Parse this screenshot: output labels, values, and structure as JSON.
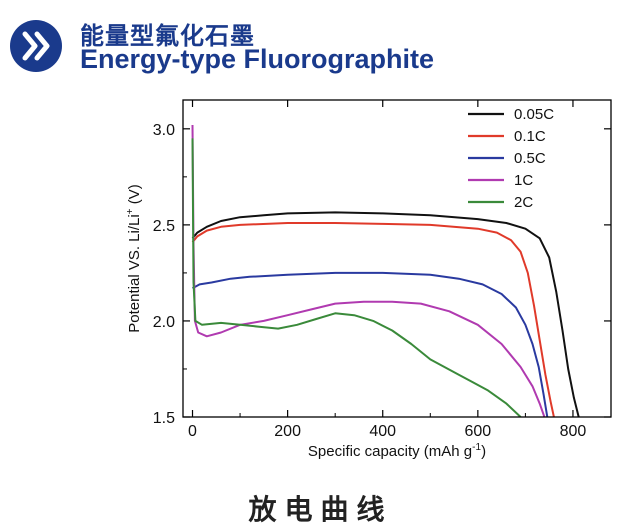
{
  "header": {
    "title_cn": "能量型氟化石墨",
    "title_en": "Energy-type Fluorographite",
    "icon": "double-chevron-right-icon",
    "accent_color": "#1a3a8c"
  },
  "caption": "放电曲线",
  "chart_data": {
    "type": "line",
    "title": "",
    "xlabel": "Specific capacity (mAh g",
    "xlabel_sup": "-1",
    "xlabel_end": ")",
    "ylabel": "Potential VS. Li/Li",
    "ylabel_sup": "+",
    "ylabel_end": " (V)",
    "xlim": [
      -20,
      880
    ],
    "ylim": [
      1.5,
      3.15
    ],
    "xticks": [
      "0",
      "200",
      "400",
      "600",
      "800"
    ],
    "xtick_values": [
      0,
      200,
      400,
      600,
      800
    ],
    "yticks": [
      "1.5",
      "2.0",
      "2.5",
      "3.0"
    ],
    "ytick_values": [
      1.5,
      2.0,
      2.5,
      3.0
    ],
    "grid": false,
    "legend_position": "top-right",
    "series": [
      {
        "name": "0.05C",
        "color": "#111111",
        "points": [
          [
            0,
            2.43
          ],
          [
            10,
            2.46
          ],
          [
            30,
            2.49
          ],
          [
            60,
            2.52
          ],
          [
            100,
            2.54
          ],
          [
            150,
            2.55
          ],
          [
            200,
            2.56
          ],
          [
            300,
            2.565
          ],
          [
            400,
            2.56
          ],
          [
            500,
            2.55
          ],
          [
            600,
            2.53
          ],
          [
            660,
            2.51
          ],
          [
            700,
            2.48
          ],
          [
            730,
            2.43
          ],
          [
            750,
            2.33
          ],
          [
            765,
            2.15
          ],
          [
            778,
            1.95
          ],
          [
            790,
            1.75
          ],
          [
            802,
            1.6
          ],
          [
            812,
            1.5
          ]
        ]
      },
      {
        "name": "0.1C",
        "color": "#e03a2a",
        "points": [
          [
            0,
            2.41
          ],
          [
            10,
            2.44
          ],
          [
            30,
            2.47
          ],
          [
            60,
            2.49
          ],
          [
            100,
            2.5
          ],
          [
            200,
            2.51
          ],
          [
            300,
            2.51
          ],
          [
            400,
            2.505
          ],
          [
            500,
            2.5
          ],
          [
            600,
            2.48
          ],
          [
            640,
            2.46
          ],
          [
            670,
            2.42
          ],
          [
            690,
            2.36
          ],
          [
            705,
            2.25
          ],
          [
            718,
            2.08
          ],
          [
            730,
            1.9
          ],
          [
            742,
            1.72
          ],
          [
            753,
            1.58
          ],
          [
            760,
            1.5
          ]
        ]
      },
      {
        "name": "0.5C",
        "color": "#2a3aa0",
        "points": [
          [
            0,
            2.17
          ],
          [
            15,
            2.19
          ],
          [
            40,
            2.2
          ],
          [
            80,
            2.22
          ],
          [
            120,
            2.23
          ],
          [
            200,
            2.24
          ],
          [
            300,
            2.25
          ],
          [
            400,
            2.25
          ],
          [
            500,
            2.24
          ],
          [
            560,
            2.22
          ],
          [
            610,
            2.19
          ],
          [
            650,
            2.14
          ],
          [
            680,
            2.07
          ],
          [
            700,
            1.98
          ],
          [
            715,
            1.88
          ],
          [
            728,
            1.76
          ],
          [
            738,
            1.62
          ],
          [
            746,
            1.5
          ]
        ]
      },
      {
        "name": "1C",
        "color": "#b03ab0",
        "points": [
          [
            0,
            3.02
          ],
          [
            2,
            2.4
          ],
          [
            5,
            2.0
          ],
          [
            12,
            1.94
          ],
          [
            30,
            1.92
          ],
          [
            60,
            1.94
          ],
          [
            100,
            1.98
          ],
          [
            150,
            2.0
          ],
          [
            200,
            2.03
          ],
          [
            250,
            2.06
          ],
          [
            300,
            2.09
          ],
          [
            360,
            2.1
          ],
          [
            420,
            2.1
          ],
          [
            480,
            2.09
          ],
          [
            540,
            2.05
          ],
          [
            600,
            1.98
          ],
          [
            650,
            1.88
          ],
          [
            690,
            1.76
          ],
          [
            715,
            1.66
          ],
          [
            730,
            1.57
          ],
          [
            740,
            1.5
          ]
        ]
      },
      {
        "name": "2C",
        "color": "#3a8a3a",
        "points": [
          [
            0,
            2.95
          ],
          [
            2,
            2.2
          ],
          [
            6,
            2.0
          ],
          [
            20,
            1.98
          ],
          [
            60,
            1.99
          ],
          [
            100,
            1.98
          ],
          [
            140,
            1.97
          ],
          [
            180,
            1.96
          ],
          [
            220,
            1.98
          ],
          [
            260,
            2.01
          ],
          [
            300,
            2.04
          ],
          [
            340,
            2.03
          ],
          [
            380,
            2.0
          ],
          [
            420,
            1.95
          ],
          [
            460,
            1.88
          ],
          [
            500,
            1.8
          ],
          [
            560,
            1.72
          ],
          [
            620,
            1.64
          ],
          [
            660,
            1.57
          ],
          [
            690,
            1.5
          ]
        ]
      }
    ]
  }
}
